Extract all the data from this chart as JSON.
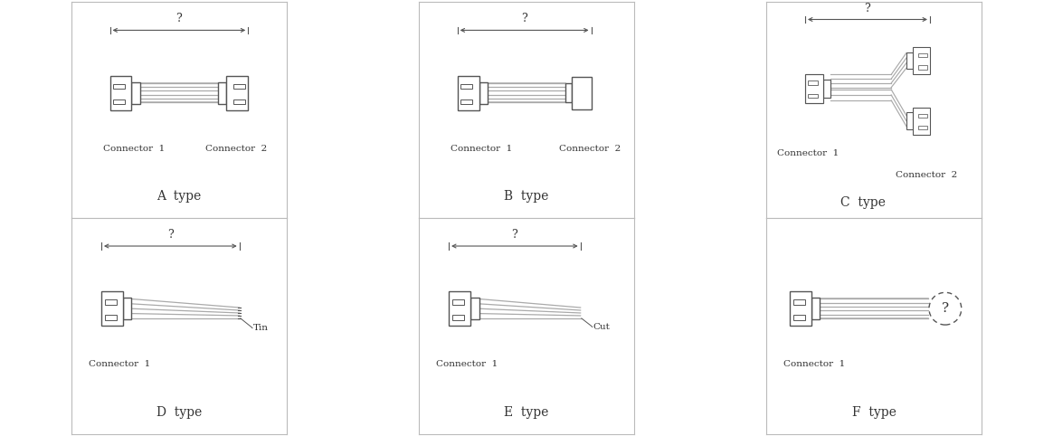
{
  "background": "#ffffff",
  "wire_color": "#aaaaaa",
  "outline_color": "#555555",
  "text_color": "#333333",
  "panels": [
    "A",
    "B",
    "C",
    "D",
    "E",
    "F"
  ],
  "labels": [
    "A  type",
    "B  type",
    "C  type",
    "D  type",
    "E  type",
    "F  type"
  ],
  "conn1_label": "Connector  1",
  "conn2_label": "Connector  2",
  "question_mark": "?",
  "tin_label": "Tin",
  "cut_label": "Cut",
  "grid_color": "#bbbbbb"
}
